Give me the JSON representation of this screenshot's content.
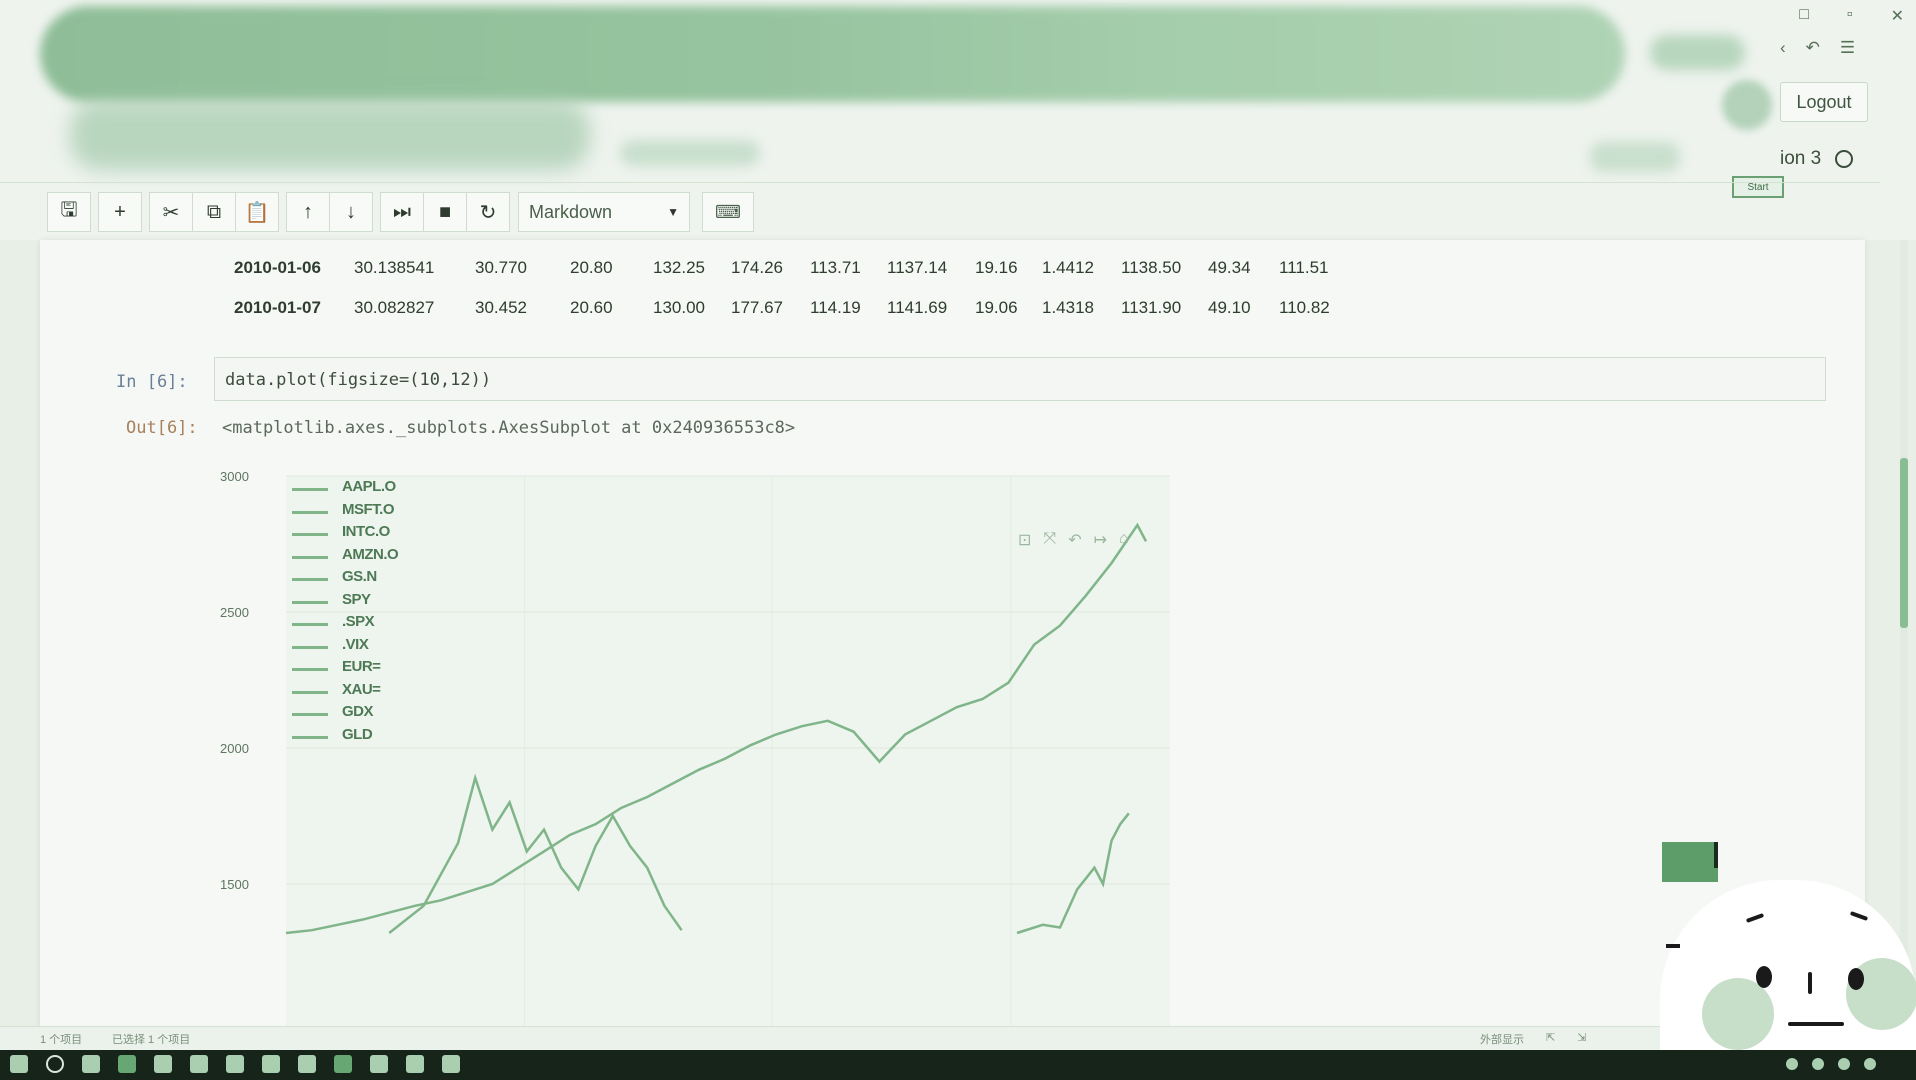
{
  "window": {
    "logout_label": "Logout",
    "kernel_label": "ion 3",
    "start_badge": "Start",
    "controls": [
      "□",
      "▫",
      "✕"
    ]
  },
  "toolbar": {
    "buttons": [
      {
        "name": "save-button",
        "glyph": "🖫"
      },
      {
        "name": "insert-cell-button",
        "glyph": "+"
      },
      {
        "name": "cut-button",
        "glyph": "✂"
      },
      {
        "name": "copy-button",
        "glyph": "⧉"
      },
      {
        "name": "paste-button",
        "glyph": "📋"
      },
      {
        "name": "move-up-button",
        "glyph": "↑"
      },
      {
        "name": "move-down-button",
        "glyph": "↓"
      },
      {
        "name": "run-button",
        "glyph": "⏭"
      },
      {
        "name": "interrupt-button",
        "glyph": "■"
      },
      {
        "name": "restart-button",
        "glyph": "↻"
      }
    ],
    "cell_type": "Markdown",
    "keyboard_icon": "⌨"
  },
  "dataframe_rows": [
    {
      "index": "2010-01-06",
      "values": [
        "30.138541",
        "30.770",
        "20.80",
        "132.25",
        "174.26",
        "113.71",
        "1137.14",
        "19.16",
        "1.4412",
        "1138.50",
        "49.34",
        "111.51"
      ]
    },
    {
      "index": "2010-01-07",
      "values": [
        "30.082827",
        "30.452",
        "20.60",
        "130.00",
        "177.67",
        "114.19",
        "1141.69",
        "19.06",
        "1.4318",
        "1131.90",
        "49.10",
        "110.82"
      ]
    }
  ],
  "cell": {
    "in_prompt": "In  [6]:",
    "code": "data.plot(figsize=(10,12))",
    "out_prompt": "Out[6]:",
    "output": "<matplotlib.axes._subplots.AxesSubplot at 0x240936553c8>"
  },
  "chart_data": {
    "type": "line",
    "title": "",
    "xlabel": "",
    "ylabel": "",
    "ylim": [
      1300,
      3000
    ],
    "yticks": [
      3000,
      2500,
      2000,
      1500
    ],
    "grid": true,
    "legend_position": "top-left",
    "legend": [
      "AAPL.O",
      "MSFT.O",
      "INTC.O",
      "AMZN.O",
      "GS.N",
      "SPY",
      ".SPX",
      ".VIX",
      "EUR=",
      "XAU=",
      "GDX",
      "GLD"
    ],
    "colors": {
      "series": "#7fb589",
      "legend_text": "#4d7a55"
    },
    "series": [
      {
        "name": ".SPX",
        "x": [
          0,
          0.03,
          0.06,
          0.09,
          0.12,
          0.15,
          0.18,
          0.21,
          0.24,
          0.27,
          0.3,
          0.33,
          0.36,
          0.39,
          0.42,
          0.45,
          0.48,
          0.51,
          0.54,
          0.57,
          0.6,
          0.63,
          0.66,
          0.69,
          0.72,
          0.75,
          0.78,
          0.81,
          0.84,
          0.87,
          0.9,
          0.93,
          0.96,
          0.99,
          1.0
        ],
        "values": [
          1320,
          1330,
          1350,
          1370,
          1395,
          1420,
          1440,
          1470,
          1500,
          1560,
          1620,
          1680,
          1720,
          1780,
          1820,
          1870,
          1920,
          1960,
          2010,
          2050,
          2080,
          2100,
          2060,
          1950,
          2050,
          2100,
          2150,
          2180,
          2240,
          2380,
          2450,
          2560,
          2680,
          2820,
          2760
        ]
      },
      {
        "name": "AMZN.O",
        "x": [
          0.12,
          0.16,
          0.2,
          0.22,
          0.24,
          0.26,
          0.28,
          0.3,
          0.32,
          0.34,
          0.36,
          0.38,
          0.4,
          0.42,
          0.44,
          0.46
        ],
        "values": [
          1320,
          1420,
          1650,
          1890,
          1700,
          1800,
          1620,
          1700,
          1560,
          1480,
          1640,
          1750,
          1640,
          1560,
          1420,
          1330
        ]
      },
      {
        "name": "XAU=",
        "x": [
          0.85,
          0.88,
          0.9,
          0.92,
          0.94,
          0.95,
          0.96,
          0.97,
          0.98
        ],
        "values": [
          1320,
          1350,
          1340,
          1480,
          1560,
          1500,
          1660,
          1720,
          1760
        ]
      }
    ]
  },
  "statusbar": {
    "left": "1 个项目",
    "message": "已选择 1 个项目",
    "right": [
      "外部显示",
      "⇱",
      "⇲"
    ]
  }
}
